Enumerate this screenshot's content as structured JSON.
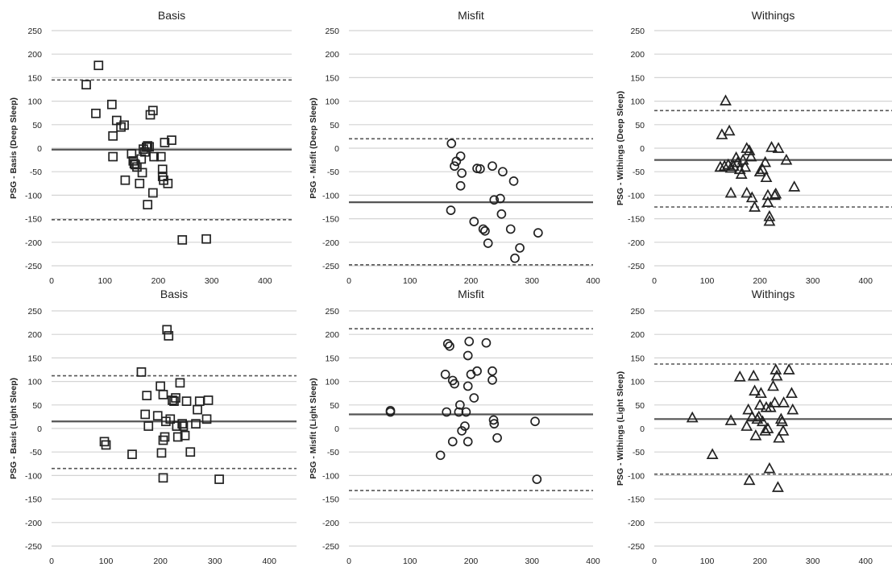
{
  "chart_data": [
    {
      "type": "scatter",
      "marker": "square",
      "title": "Basis",
      "ylabel": "PSG - Basis (Deep Sleep)",
      "xlim": [
        0,
        450
      ],
      "xticks": [
        0,
        100,
        200,
        300,
        400
      ],
      "ylim": [
        -250,
        250
      ],
      "yticks": [
        250,
        200,
        150,
        100,
        50,
        0,
        -50,
        -100,
        -150,
        -200,
        -250
      ],
      "mean": -3,
      "loa_upper": 145,
      "loa_lower": -152,
      "points": [
        [
          65,
          135
        ],
        [
          88,
          176
        ],
        [
          83,
          74
        ],
        [
          113,
          93
        ],
        [
          122,
          59
        ],
        [
          130,
          45
        ],
        [
          136,
          49
        ],
        [
          115,
          26
        ],
        [
          115,
          -18
        ],
        [
          138,
          -68
        ],
        [
          150,
          -12
        ],
        [
          153,
          -27
        ],
        [
          155,
          -33
        ],
        [
          157,
          -35
        ],
        [
          160,
          -40
        ],
        [
          165,
          -75
        ],
        [
          168,
          -23
        ],
        [
          170,
          -52
        ],
        [
          172,
          -2
        ],
        [
          175,
          -8
        ],
        [
          178,
          2
        ],
        [
          180,
          5
        ],
        [
          183,
          3
        ],
        [
          180,
          -120
        ],
        [
          185,
          71
        ],
        [
          190,
          80
        ],
        [
          192,
          -18
        ],
        [
          190,
          -95
        ],
        [
          205,
          -18
        ],
        [
          208,
          -45
        ],
        [
          208,
          -60
        ],
        [
          210,
          -68
        ],
        [
          212,
          12
        ],
        [
          218,
          -75
        ],
        [
          225,
          17
        ],
        [
          245,
          -195
        ],
        [
          290,
          -193
        ]
      ]
    },
    {
      "type": "scatter",
      "marker": "circle",
      "title": "Misfit",
      "ylabel": "PSG - Misfit (Deep Sleep)",
      "xlim": [
        0,
        400
      ],
      "xticks": [
        0,
        100,
        200,
        300,
        400
      ],
      "ylim": [
        -250,
        250
      ],
      "yticks": [
        250,
        200,
        150,
        100,
        50,
        0,
        -50,
        -100,
        -150,
        -200,
        -250
      ],
      "mean": -115,
      "loa_upper": 20,
      "loa_lower": -248,
      "points": [
        [
          168,
          10
        ],
        [
          173,
          -38
        ],
        [
          176,
          -28
        ],
        [
          183,
          -17
        ],
        [
          185,
          -53
        ],
        [
          183,
          -80
        ],
        [
          167,
          -132
        ],
        [
          205,
          -156
        ],
        [
          210,
          -43
        ],
        [
          215,
          -44
        ],
        [
          220,
          -172
        ],
        [
          223,
          -176
        ],
        [
          228,
          -202
        ],
        [
          235,
          -38
        ],
        [
          238,
          -110
        ],
        [
          248,
          -107
        ],
        [
          250,
          -140
        ],
        [
          252,
          -50
        ],
        [
          265,
          -172
        ],
        [
          270,
          -70
        ],
        [
          272,
          -234
        ],
        [
          280,
          -212
        ],
        [
          310,
          -180
        ]
      ]
    },
    {
      "type": "scatter",
      "marker": "triangle",
      "title": "Withings",
      "ylabel": "PSG - Withings (Deep Sleep)",
      "xlim": [
        0,
        450
      ],
      "xticks": [
        0,
        100,
        200,
        300,
        400
      ],
      "ylim": [
        -250,
        250
      ],
      "yticks": [
        250,
        200,
        150,
        100,
        50,
        0,
        -50,
        -100,
        -150,
        -200,
        -250
      ],
      "mean": -25,
      "loa_upper": 80,
      "loa_lower": -125,
      "points": [
        [
          135,
          101
        ],
        [
          128,
          29
        ],
        [
          142,
          37
        ],
        [
          125,
          -40
        ],
        [
          133,
          -38
        ],
        [
          140,
          -35
        ],
        [
          145,
          -42
        ],
        [
          150,
          -38
        ],
        [
          155,
          -20
        ],
        [
          158,
          -30
        ],
        [
          162,
          -45
        ],
        [
          168,
          -25
        ],
        [
          165,
          -55
        ],
        [
          172,
          -40
        ],
        [
          175,
          0
        ],
        [
          180,
          -5
        ],
        [
          183,
          -18
        ],
        [
          145,
          -95
        ],
        [
          175,
          -95
        ],
        [
          185,
          -105
        ],
        [
          190,
          -125
        ],
        [
          200,
          -50
        ],
        [
          205,
          -45
        ],
        [
          210,
          -30
        ],
        [
          212,
          -62
        ],
        [
          215,
          -100
        ],
        [
          215,
          -115
        ],
        [
          218,
          -145
        ],
        [
          218,
          -155
        ],
        [
          222,
          2
        ],
        [
          228,
          -100
        ],
        [
          230,
          -97
        ],
        [
          235,
          0
        ],
        [
          250,
          -25
        ],
        [
          265,
          -82
        ]
      ]
    },
    {
      "type": "scatter",
      "marker": "square",
      "title": "Basis",
      "ylabel": "PSG - Basis (Light Sleep)",
      "xlim": [
        0,
        450
      ],
      "xticks": [
        0,
        100,
        200,
        300,
        400
      ],
      "ylim": [
        -250,
        250
      ],
      "yticks": [
        250,
        200,
        150,
        100,
        50,
        0,
        -50,
        -100,
        -150,
        -200,
        -250
      ],
      "mean": 15,
      "loa_upper": 112,
      "loa_lower": -85,
      "points": [
        [
          97,
          -28
        ],
        [
          100,
          -35
        ],
        [
          148,
          -55
        ],
        [
          165,
          120
        ],
        [
          172,
          30
        ],
        [
          175,
          70
        ],
        [
          178,
          5
        ],
        [
          195,
          27
        ],
        [
          200,
          90
        ],
        [
          202,
          -52
        ],
        [
          205,
          72
        ],
        [
          205,
          -25
        ],
        [
          208,
          -18
        ],
        [
          210,
          15
        ],
        [
          212,
          210
        ],
        [
          215,
          197
        ],
        [
          218,
          20
        ],
        [
          222,
          60
        ],
        [
          225,
          58
        ],
        [
          228,
          65
        ],
        [
          230,
          5
        ],
        [
          232,
          -18
        ],
        [
          236,
          97
        ],
        [
          240,
          10
        ],
        [
          242,
          5
        ],
        [
          245,
          -15
        ],
        [
          248,
          58
        ],
        [
          255,
          -50
        ],
        [
          265,
          10
        ],
        [
          268,
          40
        ],
        [
          272,
          58
        ],
        [
          285,
          20
        ],
        [
          288,
          60
        ],
        [
          205,
          -105
        ],
        [
          308,
          -108
        ]
      ]
    },
    {
      "type": "scatter",
      "marker": "circle",
      "title": "Misfit",
      "ylabel": "PSG - Misfit (Light Sleep)",
      "xlim": [
        0,
        400
      ],
      "xticks": [
        0,
        100,
        200,
        300,
        400
      ],
      "ylim": [
        -250,
        250
      ],
      "yticks": [
        250,
        200,
        150,
        100,
        50,
        0,
        -50,
        -100,
        -150,
        -200,
        -250
      ],
      "mean": 30,
      "loa_upper": 212,
      "loa_lower": -132,
      "points": [
        [
          68,
          38
        ],
        [
          68,
          35
        ],
        [
          158,
          115
        ],
        [
          160,
          35
        ],
        [
          162,
          180
        ],
        [
          165,
          175
        ],
        [
          170,
          -28
        ],
        [
          170,
          102
        ],
        [
          173,
          95
        ],
        [
          180,
          35
        ],
        [
          182,
          50
        ],
        [
          185,
          -5
        ],
        [
          190,
          5
        ],
        [
          192,
          35
        ],
        [
          195,
          -28
        ],
        [
          195,
          90
        ],
        [
          197,
          185
        ],
        [
          195,
          155
        ],
        [
          200,
          115
        ],
        [
          205,
          65
        ],
        [
          210,
          122
        ],
        [
          225,
          182
        ],
        [
          235,
          122
        ],
        [
          235,
          103
        ],
        [
          237,
          18
        ],
        [
          238,
          10
        ],
        [
          243,
          -20
        ],
        [
          150,
          -57
        ],
        [
          305,
          15
        ],
        [
          308,
          -108
        ]
      ]
    },
    {
      "type": "scatter",
      "marker": "triangle",
      "title": "Withings",
      "ylabel": "PSG - Withings (Light Sleep)",
      "xlim": [
        0,
        450
      ],
      "xticks": [
        0,
        100,
        200,
        300,
        400
      ],
      "ylim": [
        -250,
        250
      ],
      "yticks": [
        250,
        200,
        150,
        100,
        50,
        0,
        -50,
        -100,
        -150,
        -200,
        -250
      ],
      "mean": 20,
      "loa_upper": 137,
      "loa_lower": -97,
      "points": [
        [
          72,
          23
        ],
        [
          110,
          -55
        ],
        [
          145,
          17
        ],
        [
          162,
          110
        ],
        [
          175,
          5
        ],
        [
          178,
          40
        ],
        [
          180,
          -110
        ],
        [
          185,
          25
        ],
        [
          188,
          112
        ],
        [
          190,
          80
        ],
        [
          192,
          -15
        ],
        [
          195,
          20
        ],
        [
          198,
          25
        ],
        [
          200,
          50
        ],
        [
          202,
          75
        ],
        [
          205,
          15
        ],
        [
          210,
          -5
        ],
        [
          212,
          45
        ],
        [
          215,
          0
        ],
        [
          218,
          -85
        ],
        [
          220,
          45
        ],
        [
          225,
          90
        ],
        [
          228,
          55
        ],
        [
          230,
          125
        ],
        [
          232,
          112
        ],
        [
          234,
          -125
        ],
        [
          236,
          -20
        ],
        [
          240,
          20
        ],
        [
          242,
          15
        ],
        [
          244,
          -5
        ],
        [
          245,
          55
        ],
        [
          255,
          125
        ],
        [
          260,
          75
        ],
        [
          262,
          40
        ]
      ]
    }
  ]
}
